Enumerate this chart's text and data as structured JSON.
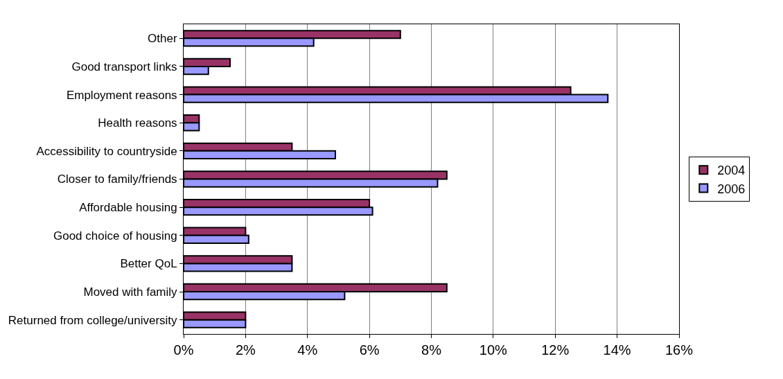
{
  "chart_data": {
    "type": "bar",
    "orientation": "horizontal",
    "categories": [
      "Other",
      "Good transport links",
      "Employment reasons",
      "Health reasons",
      "Accessibility to countryside",
      "Closer to family/friends",
      "Affordable housing",
      "Good choice of housing",
      "Better QoL",
      "Moved with family",
      "Returned from college/university"
    ],
    "series": [
      {
        "name": "2004",
        "color": "#993366",
        "values": [
          7.0,
          1.5,
          12.5,
          0.5,
          3.5,
          8.5,
          6.0,
          2.0,
          3.5,
          8.5,
          2.0
        ]
      },
      {
        "name": "2006",
        "color": "#9999ff",
        "values": [
          4.2,
          0.8,
          13.7,
          0.5,
          4.9,
          8.2,
          6.1,
          2.1,
          3.5,
          5.2,
          2.0
        ]
      }
    ],
    "xlim": [
      0,
      16
    ],
    "xticks": [
      {
        "value": 0,
        "label": "0%"
      },
      {
        "value": 2,
        "label": "2%"
      },
      {
        "value": 4,
        "label": "4%"
      },
      {
        "value": 6,
        "label": "6%"
      },
      {
        "value": 8,
        "label": "8%"
      },
      {
        "value": 10,
        "label": "10%"
      },
      {
        "value": 12,
        "label": "12%"
      },
      {
        "value": 14,
        "label": "14%"
      },
      {
        "value": 16,
        "label": "16%"
      }
    ],
    "grid": "x",
    "legend": "right"
  }
}
